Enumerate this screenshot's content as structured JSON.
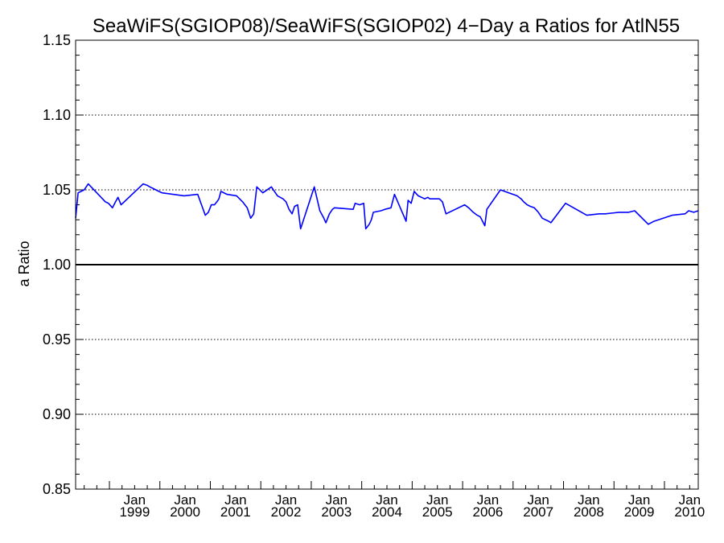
{
  "chart_data": {
    "type": "line",
    "title": "SeaWiFS(SGIOP08)/SeaWiFS(SGIOP02) 4−Day a Ratios for AtlN55",
    "xlabel": "",
    "ylabel": "a Ratio",
    "ylim": [
      0.85,
      1.15
    ],
    "xlim": [
      1998.33,
      2010.67
    ],
    "yticks": [
      "0.85",
      "0.90",
      "0.95",
      "1.00",
      "1.05",
      "1.10",
      "1.15"
    ],
    "xticks": [
      {
        "month": "Jan",
        "year": "1999"
      },
      {
        "month": "Jan",
        "year": "2000"
      },
      {
        "month": "Jan",
        "year": "2001"
      },
      {
        "month": "Jan",
        "year": "2002"
      },
      {
        "month": "Jan",
        "year": "2003"
      },
      {
        "month": "Jan",
        "year": "2004"
      },
      {
        "month": "Jan",
        "year": "2005"
      },
      {
        "month": "Jan",
        "year": "2006"
      },
      {
        "month": "Jan",
        "year": "2007"
      },
      {
        "month": "Jan",
        "year": "2008"
      },
      {
        "month": "Jan",
        "year": "2009"
      },
      {
        "month": "Jan",
        "year": "2010"
      }
    ],
    "reference_line": 1.0,
    "grid": "dotted horizontal at major ticks",
    "line_color": "#0000ff",
    "series": [
      {
        "x": [
          1998.33,
          1998.38,
          1998.5,
          1998.58,
          1998.92,
          1998.98,
          1999.06,
          1999.12,
          1999.17,
          1999.23,
          1999.67,
          1999.75,
          1999.8,
          1999.86,
          1999.92,
          1999.98,
          2000.04,
          2000.48,
          2000.75,
          2000.9,
          2000.96,
          2001.02,
          2001.08,
          2001.13,
          2001.17,
          2001.21,
          2001.33,
          2001.52,
          2001.64,
          2001.73,
          2001.8,
          2001.86,
          2001.92,
          2002.04,
          2002.21,
          2002.33,
          2002.44,
          2002.5,
          2002.56,
          2002.62,
          2002.67,
          2002.73,
          2002.79,
          2003.06,
          2003.17,
          2003.25,
          2003.29,
          2003.36,
          2003.42,
          2003.46,
          2003.83,
          2003.87,
          2003.96,
          2004.04,
          2004.08,
          2004.15,
          2004.19,
          2004.23,
          2004.38,
          2004.46,
          2004.58,
          2004.65,
          2004.88,
          2004.92,
          2004.98,
          2005.04,
          2005.12,
          2005.25,
          2005.31,
          2005.35,
          2005.42,
          2005.54,
          2005.6,
          2005.67,
          2006.04,
          2006.12,
          2006.21,
          2006.29,
          2006.35,
          2006.44,
          2006.48,
          2006.75,
          2007.08,
          2007.16,
          2007.21,
          2007.28,
          2007.34,
          2007.42,
          2007.5,
          2007.58,
          2007.71,
          2007.75,
          2008.04,
          2008.46,
          2008.71,
          2008.83,
          2009.1,
          2009.29,
          2009.41,
          2009.68,
          2009.79,
          2010.15,
          2010.41,
          2010.48,
          2010.58,
          2010.67
        ],
        "y": [
          1.031,
          1.048,
          1.05,
          1.054,
          1.042,
          1.041,
          1.038,
          1.042,
          1.045,
          1.04,
          1.054,
          1.053,
          1.052,
          1.051,
          1.05,
          1.049,
          1.048,
          1.046,
          1.047,
          1.033,
          1.035,
          1.04,
          1.04,
          1.042,
          1.044,
          1.049,
          1.047,
          1.046,
          1.042,
          1.038,
          1.031,
          1.034,
          1.052,
          1.048,
          1.052,
          1.046,
          1.044,
          1.042,
          1.037,
          1.034,
          1.039,
          1.04,
          1.024,
          1.052,
          1.036,
          1.031,
          1.028,
          1.034,
          1.037,
          1.038,
          1.037,
          1.041,
          1.04,
          1.041,
          1.024,
          1.027,
          1.03,
          1.035,
          1.036,
          1.037,
          1.038,
          1.047,
          1.029,
          1.043,
          1.041,
          1.049,
          1.046,
          1.044,
          1.045,
          1.044,
          1.044,
          1.044,
          1.042,
          1.034,
          1.04,
          1.038,
          1.035,
          1.033,
          1.032,
          1.026,
          1.037,
          1.05,
          1.046,
          1.044,
          1.042,
          1.04,
          1.039,
          1.038,
          1.035,
          1.031,
          1.029,
          1.028,
          1.041,
          1.033,
          1.034,
          1.034,
          1.035,
          1.035,
          1.036,
          1.027,
          1.029,
          1.033,
          1.034,
          1.036,
          1.035,
          1.036
        ]
      }
    ]
  }
}
